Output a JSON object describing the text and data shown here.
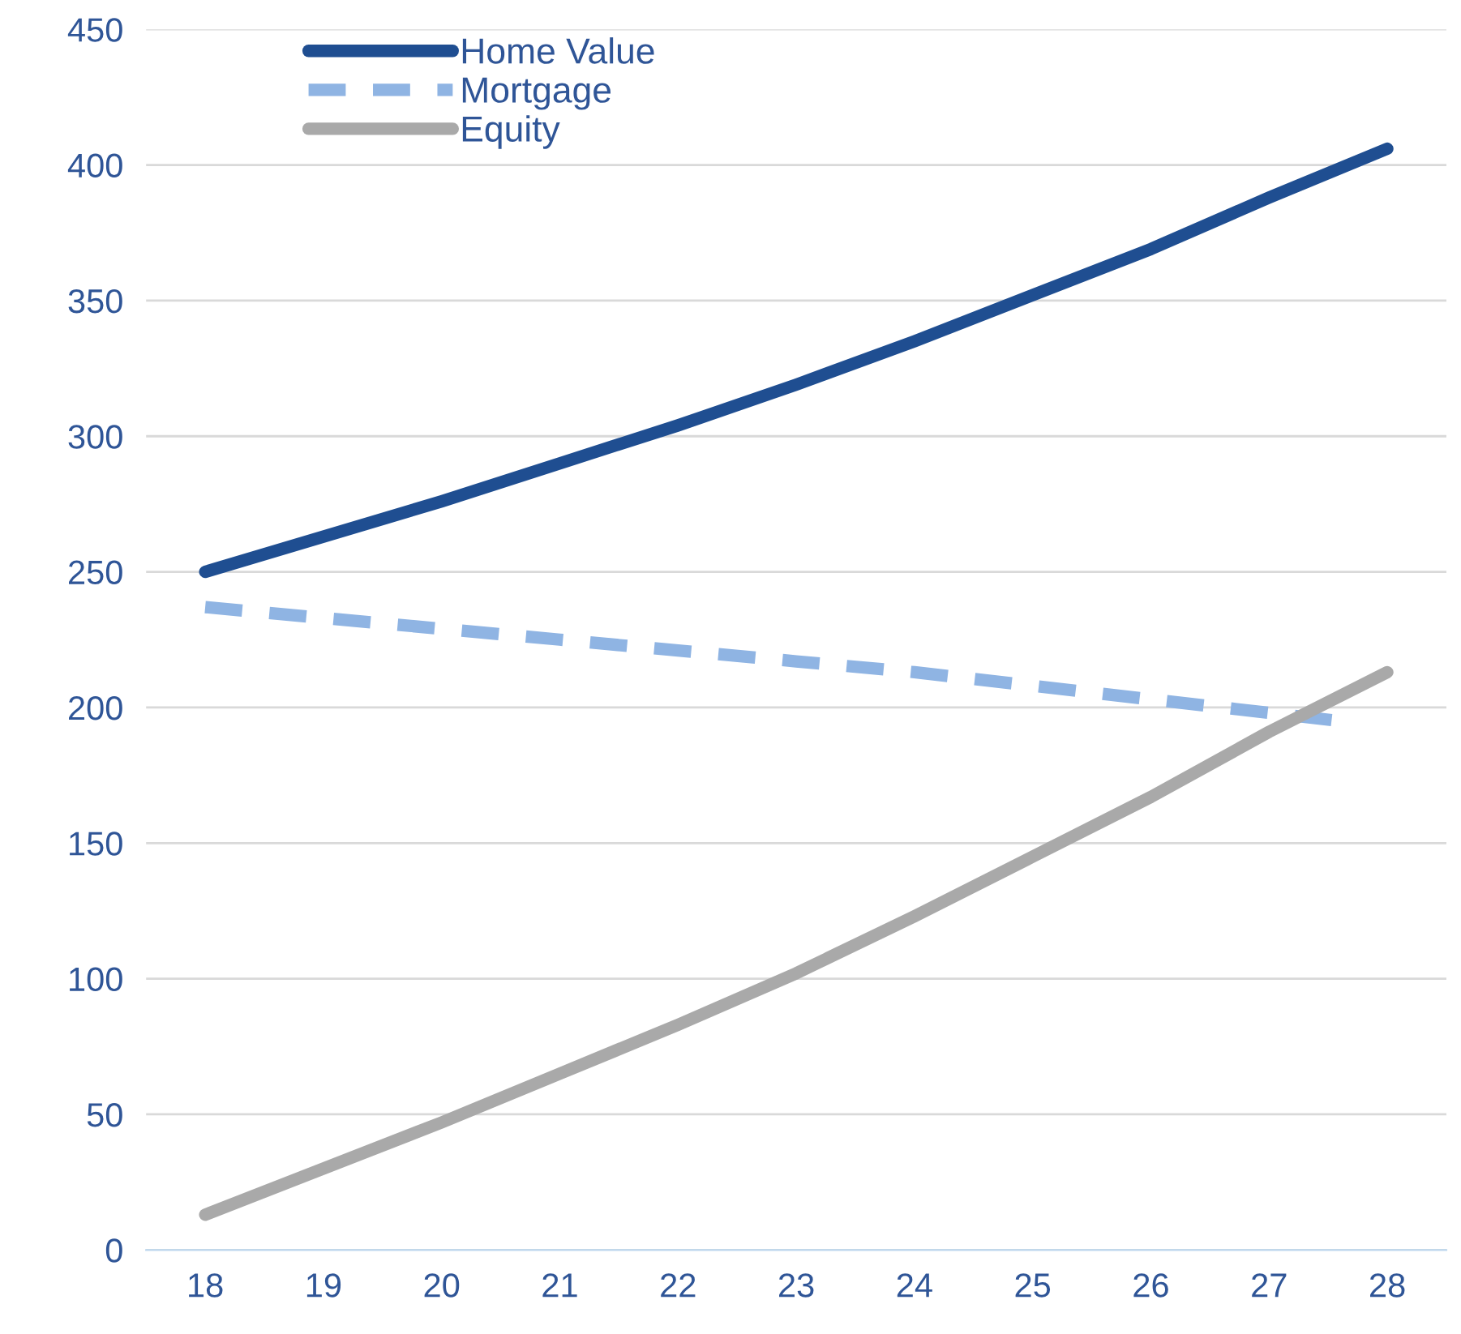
{
  "chart_data": {
    "type": "line",
    "x": [
      18,
      19,
      20,
      21,
      22,
      23,
      24,
      25,
      26,
      27,
      28
    ],
    "series": [
      {
        "name": "Home Value",
        "color": "#1f4e91",
        "line_style": "solid",
        "values": [
          250,
          263,
          276,
          290,
          304,
          319,
          335,
          352,
          369,
          388,
          406
        ]
      },
      {
        "name": "Mortgage",
        "color": "#8fb4e3",
        "line_style": "dashed",
        "x": [
          18,
          19,
          20,
          21,
          22,
          23,
          24,
          25,
          26,
          27,
          27.6
        ],
        "values": [
          237,
          233,
          229,
          225,
          221,
          217,
          213,
          208,
          203,
          198,
          195
        ]
      },
      {
        "name": "Equity",
        "color": "#a9a9a9",
        "line_style": "solid",
        "values": [
          13,
          30,
          47,
          65,
          83,
          102,
          123,
          145,
          167,
          191,
          213
        ]
      }
    ],
    "xlim": [
      17.5,
      28.5
    ],
    "xticks": [
      18,
      19,
      20,
      21,
      22,
      23,
      24,
      25,
      26,
      27,
      28
    ],
    "ylim": [
      0,
      450
    ],
    "yticks": [
      0,
      50,
      100,
      150,
      200,
      250,
      300,
      350,
      400,
      450
    ],
    "grid": "y",
    "legend": "top left",
    "marker": "none"
  }
}
